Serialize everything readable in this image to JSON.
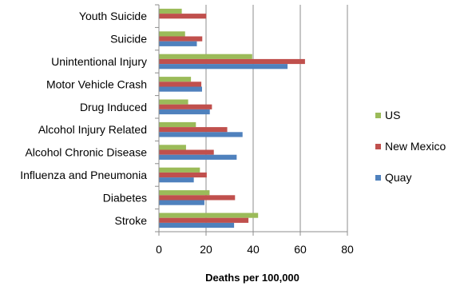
{
  "chart_data": {
    "type": "bar",
    "orientation": "horizontal",
    "categories": [
      "Youth Suicide",
      "Suicide",
      "Unintentional Injury",
      "Motor Vehicle Crash",
      "Drug Induced",
      "Alcohol Injury Related",
      "Alcohol Chronic Disease",
      "Influenza and Pneumonia",
      "Diabetes",
      "Stroke"
    ],
    "series": [
      {
        "name": "US",
        "color": "#9BBB59",
        "values": [
          9.7,
          11.1,
          39.6,
          13.6,
          12.4,
          15.7,
          11.5,
          17.4,
          21.5,
          42.1
        ]
      },
      {
        "name": "New Mexico",
        "color": "#C0504D",
        "values": [
          20.1,
          18.4,
          62.0,
          18.0,
          22.5,
          29.0,
          23.3,
          20.3,
          32.3,
          38.0
        ]
      },
      {
        "name": "Quay",
        "color": "#4F81BD",
        "values": [
          null,
          16.1,
          54.6,
          18.3,
          21.6,
          35.5,
          33.0,
          14.8,
          19.3,
          31.9
        ]
      }
    ],
    "xlabel": "Deaths per 100,000",
    "ylabel": "",
    "xlim": [
      0,
      80
    ],
    "xticks": [
      0,
      20,
      40,
      60,
      80
    ],
    "grid": "vertical",
    "legend": "right"
  }
}
